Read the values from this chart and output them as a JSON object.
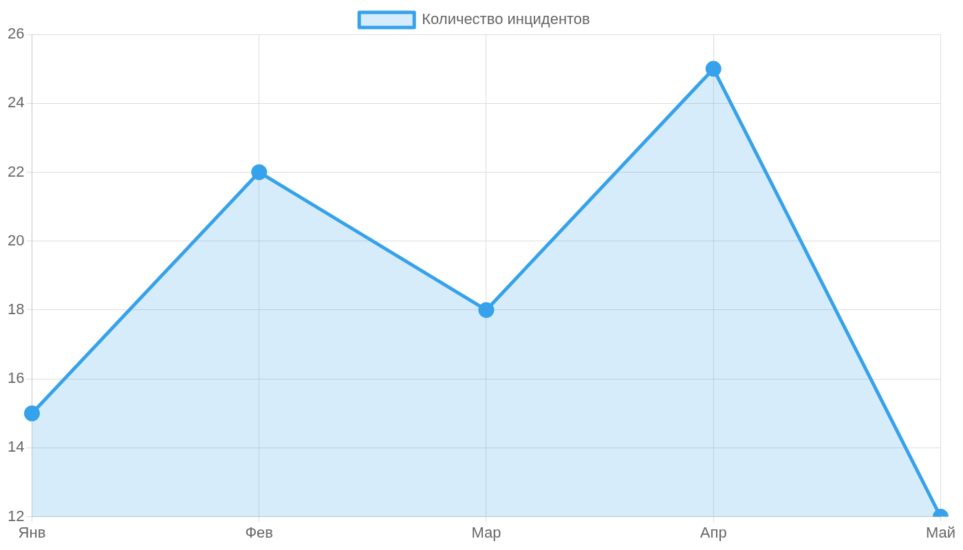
{
  "chart_data": {
    "type": "area",
    "categories": [
      "Янв",
      "Фев",
      "Мар",
      "Апр",
      "Май"
    ],
    "series": [
      {
        "name": "Количество инцидентов",
        "color": "#36a2eb",
        "values": [
          15,
          22,
          18,
          25,
          12
        ]
      }
    ],
    "ylim": [
      12,
      26
    ],
    "yticks": [
      12,
      14,
      16,
      18,
      20,
      22,
      24,
      26
    ],
    "grid": true,
    "legend": "top",
    "marker": "circle",
    "line_style": "solid"
  }
}
